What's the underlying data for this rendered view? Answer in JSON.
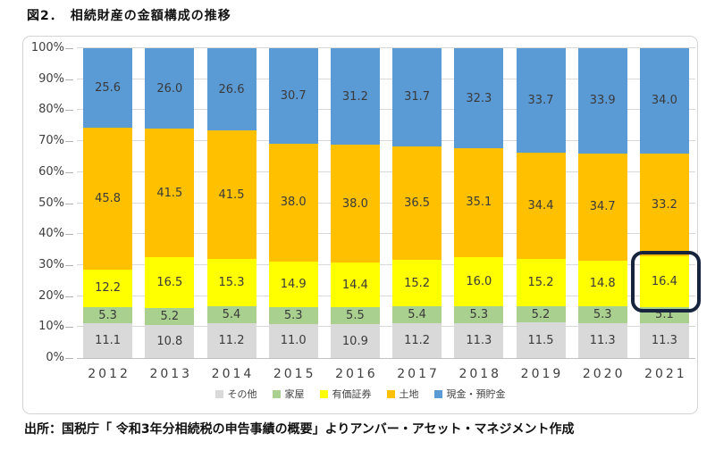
{
  "title": "図2．　相続財産の金額構成の推移",
  "source": "出所：国税庁「 令和3年分相続税の申告事績の概要」よりアンバー・アセット・マネジメント作成",
  "chart_data": {
    "type": "bar",
    "subtype": "stacked-100-percent-column",
    "title": "図2．　相続財産の金額構成の推移",
    "categories": [
      "2012",
      "2013",
      "2014",
      "2015",
      "2016",
      "2017",
      "2018",
      "2019",
      "2020",
      "2021"
    ],
    "series": [
      {
        "name": "その他",
        "color": "#D9D9D9",
        "values": [
          11.1,
          10.8,
          11.2,
          11.0,
          10.9,
          11.2,
          11.3,
          11.5,
          11.3,
          11.3
        ]
      },
      {
        "name": "家屋",
        "color": "#A9D08E",
        "values": [
          5.3,
          5.2,
          5.4,
          5.3,
          5.5,
          5.4,
          5.3,
          5.2,
          5.3,
          5.1
        ]
      },
      {
        "name": "有価証券",
        "color": "#FFFF00",
        "values": [
          12.2,
          16.5,
          15.3,
          14.9,
          14.4,
          15.2,
          16.0,
          15.2,
          14.8,
          16.4
        ]
      },
      {
        "name": "土地",
        "color": "#FFC000",
        "values": [
          45.8,
          41.5,
          41.5,
          38.0,
          38.0,
          36.5,
          35.1,
          34.4,
          34.7,
          33.2
        ]
      },
      {
        "name": "現金・預貯金",
        "color": "#5B9BD5",
        "values": [
          25.6,
          26.0,
          26.6,
          30.7,
          31.2,
          31.7,
          32.3,
          33.7,
          33.9,
          34.0
        ]
      }
    ],
    "ylim": [
      0,
      100
    ],
    "yticks": [
      "0%",
      "10%",
      "20%",
      "30%",
      "40%",
      "50%",
      "60%",
      "70%",
      "80%",
      "90%",
      "100%"
    ],
    "grid": true,
    "legend_position": "bottom",
    "value_decimals": 1,
    "highlight": {
      "category": "2021",
      "series": "有価証券",
      "border_color": "#16243E"
    }
  }
}
